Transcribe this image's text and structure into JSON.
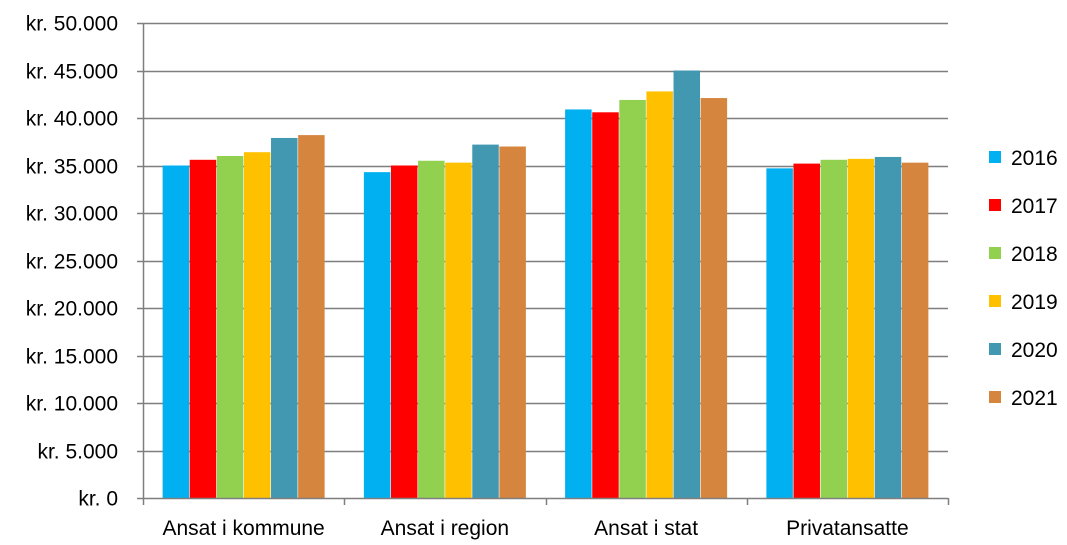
{
  "chart_data": {
    "type": "bar",
    "categories": [
      "Ansat i kommune",
      "Ansat i region",
      "Ansat i stat",
      "Privatansatte"
    ],
    "series": [
      {
        "name": "2016",
        "color": "#00B0F0",
        "values": [
          35000,
          34300,
          40900,
          34700
        ]
      },
      {
        "name": "2017",
        "color": "#FF0000",
        "values": [
          35600,
          35000,
          40600,
          35200
        ]
      },
      {
        "name": "2018",
        "color": "#92D050",
        "values": [
          36000,
          35500,
          41900,
          35600
        ]
      },
      {
        "name": "2019",
        "color": "#FFC000",
        "values": [
          36400,
          35300,
          42800,
          35700
        ]
      },
      {
        "name": "2020",
        "color": "#4198B0",
        "values": [
          37900,
          37200,
          45000,
          35900
        ]
      },
      {
        "name": "2021",
        "color": "#D6853F",
        "values": [
          38200,
          37000,
          42100,
          35300
        ]
      }
    ],
    "ylim": [
      0,
      50000
    ],
    "yticks": [
      0,
      5000,
      10000,
      15000,
      20000,
      25000,
      30000,
      35000,
      40000,
      45000,
      50000
    ],
    "ytick_labels": [
      "kr. 0",
      "kr. 5.000",
      "kr. 10.000",
      "kr. 15.000",
      "kr. 20.000",
      "kr. 25.000",
      "kr. 30.000",
      "kr. 35.000",
      "kr. 40.000",
      "kr. 45.000",
      "kr. 50.000"
    ],
    "grid": true,
    "grid_color": "#7F7F7F",
    "legend_position": "right"
  }
}
